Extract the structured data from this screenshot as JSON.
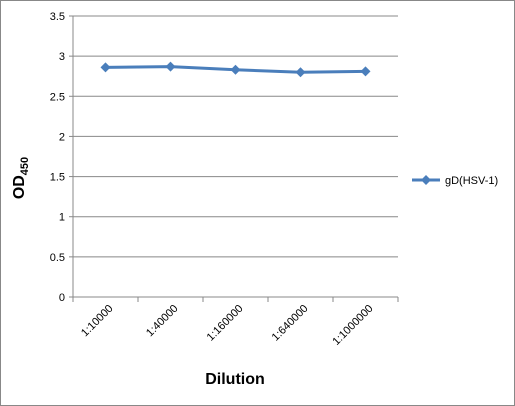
{
  "chart_data": {
    "type": "line",
    "x_label": "Dilution",
    "y_label": "OD",
    "y_label_subscript": "450",
    "categories": [
      "1:10000",
      "1:40000",
      "1:160000",
      "1:640000",
      "1:1000000"
    ],
    "series": [
      {
        "name": "gD(HSV-1)",
        "color": "#4a7ebb",
        "values": [
          2.86,
          2.87,
          2.83,
          2.8,
          2.81
        ]
      }
    ],
    "ylim": [
      0,
      3.5
    ],
    "yticks": [
      0,
      0.5,
      1,
      1.5,
      2,
      2.5,
      3,
      3.5
    ],
    "grid": true,
    "legend": "right"
  }
}
